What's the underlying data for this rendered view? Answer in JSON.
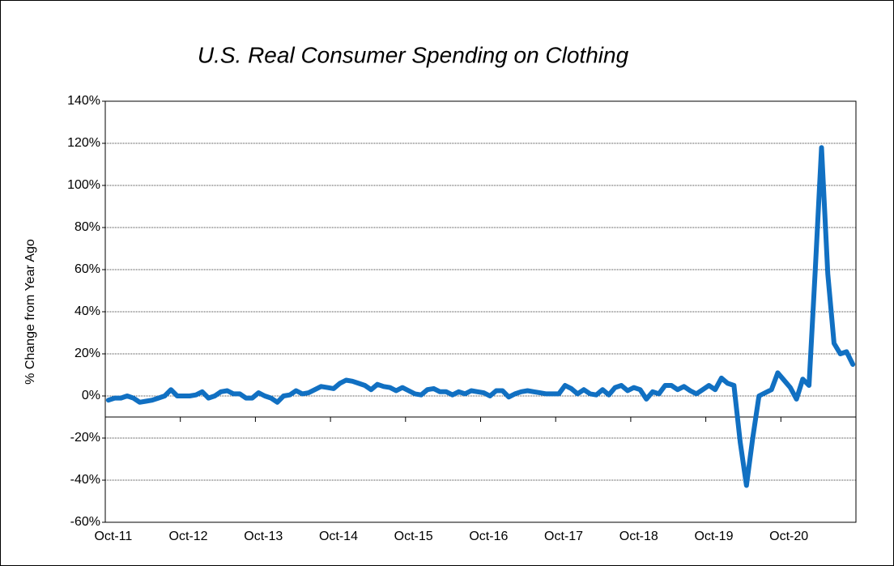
{
  "chart_data": {
    "type": "line",
    "title": "U.S. Real Consumer Spending on Clothing",
    "ylabel": "% Change from Year Ago",
    "categories": [
      "Oct-11",
      null,
      null,
      null,
      null,
      null,
      null,
      null,
      null,
      null,
      null,
      null,
      "Oct-12",
      null,
      null,
      null,
      null,
      null,
      null,
      null,
      null,
      null,
      null,
      null,
      "Oct-13",
      null,
      null,
      null,
      null,
      null,
      null,
      null,
      null,
      null,
      null,
      null,
      "Oct-14",
      null,
      null,
      null,
      null,
      null,
      null,
      null,
      null,
      null,
      null,
      null,
      "Oct-15",
      null,
      null,
      null,
      null,
      null,
      null,
      null,
      null,
      null,
      null,
      null,
      "Oct-16",
      null,
      null,
      null,
      null,
      null,
      null,
      null,
      null,
      null,
      null,
      null,
      "Oct-17",
      null,
      null,
      null,
      null,
      null,
      null,
      null,
      null,
      null,
      null,
      null,
      "Oct-18",
      null,
      null,
      null,
      null,
      null,
      null,
      null,
      null,
      null,
      null,
      null,
      "Oct-19",
      null,
      null,
      null,
      null,
      null,
      null,
      null,
      null,
      null,
      null,
      null,
      "Oct-20",
      null,
      null,
      null,
      null,
      null,
      null,
      null,
      null,
      null,
      null,
      null
    ],
    "series": [
      {
        "name": "Real Consumer Spending on Clothing",
        "color": "#1170c2",
        "values": [
          -2,
          -1,
          -1,
          0,
          -1,
          -3,
          -2.5,
          -2,
          -1,
          0,
          3,
          0,
          0,
          0,
          0.5,
          2,
          -1,
          0,
          2,
          2.5,
          1,
          1,
          -1,
          -1,
          1.5,
          0,
          -1,
          -3,
          0,
          0.5,
          2.5,
          1,
          1.5,
          3,
          4.5,
          4,
          3.5,
          6,
          7.5,
          7,
          6,
          5,
          3,
          5.5,
          4.5,
          4,
          2.5,
          4,
          2.5,
          1,
          0.5,
          3,
          3.5,
          2,
          2,
          0.5,
          2,
          1,
          2.5,
          2,
          1.5,
          0,
          2.5,
          2.5,
          -0.5,
          1,
          2,
          2.5,
          2,
          1.5,
          1,
          1,
          1,
          5,
          3.5,
          1,
          3,
          1,
          0.5,
          3,
          0.5,
          4,
          5,
          2.5,
          4,
          3,
          -1.5,
          2,
          1,
          5,
          5,
          3,
          4.5,
          2.5,
          1,
          3,
          5,
          3,
          8.5,
          6,
          5,
          -22,
          -42.5,
          -20,
          0,
          1.5,
          3,
          11,
          7.5,
          4,
          -1.5,
          8,
          5,
          60,
          118,
          58,
          25,
          20,
          21,
          15
        ]
      }
    ],
    "ylim": [
      -60,
      140
    ],
    "yticks": [
      {
        "value": -60,
        "label": "-60%"
      },
      {
        "value": -40,
        "label": "-40%"
      },
      {
        "value": -20,
        "label": "-20%"
      },
      {
        "value": 0,
        "label": "0%"
      },
      {
        "value": 20,
        "label": "20%"
      },
      {
        "value": 40,
        "label": "40%"
      },
      {
        "value": 60,
        "label": "60%"
      },
      {
        "value": 80,
        "label": "80%"
      },
      {
        "value": 100,
        "label": "100%"
      },
      {
        "value": 120,
        "label": "120%"
      },
      {
        "value": 140,
        "label": "140%"
      }
    ],
    "xaxis_crossing": -10,
    "grid": true
  }
}
